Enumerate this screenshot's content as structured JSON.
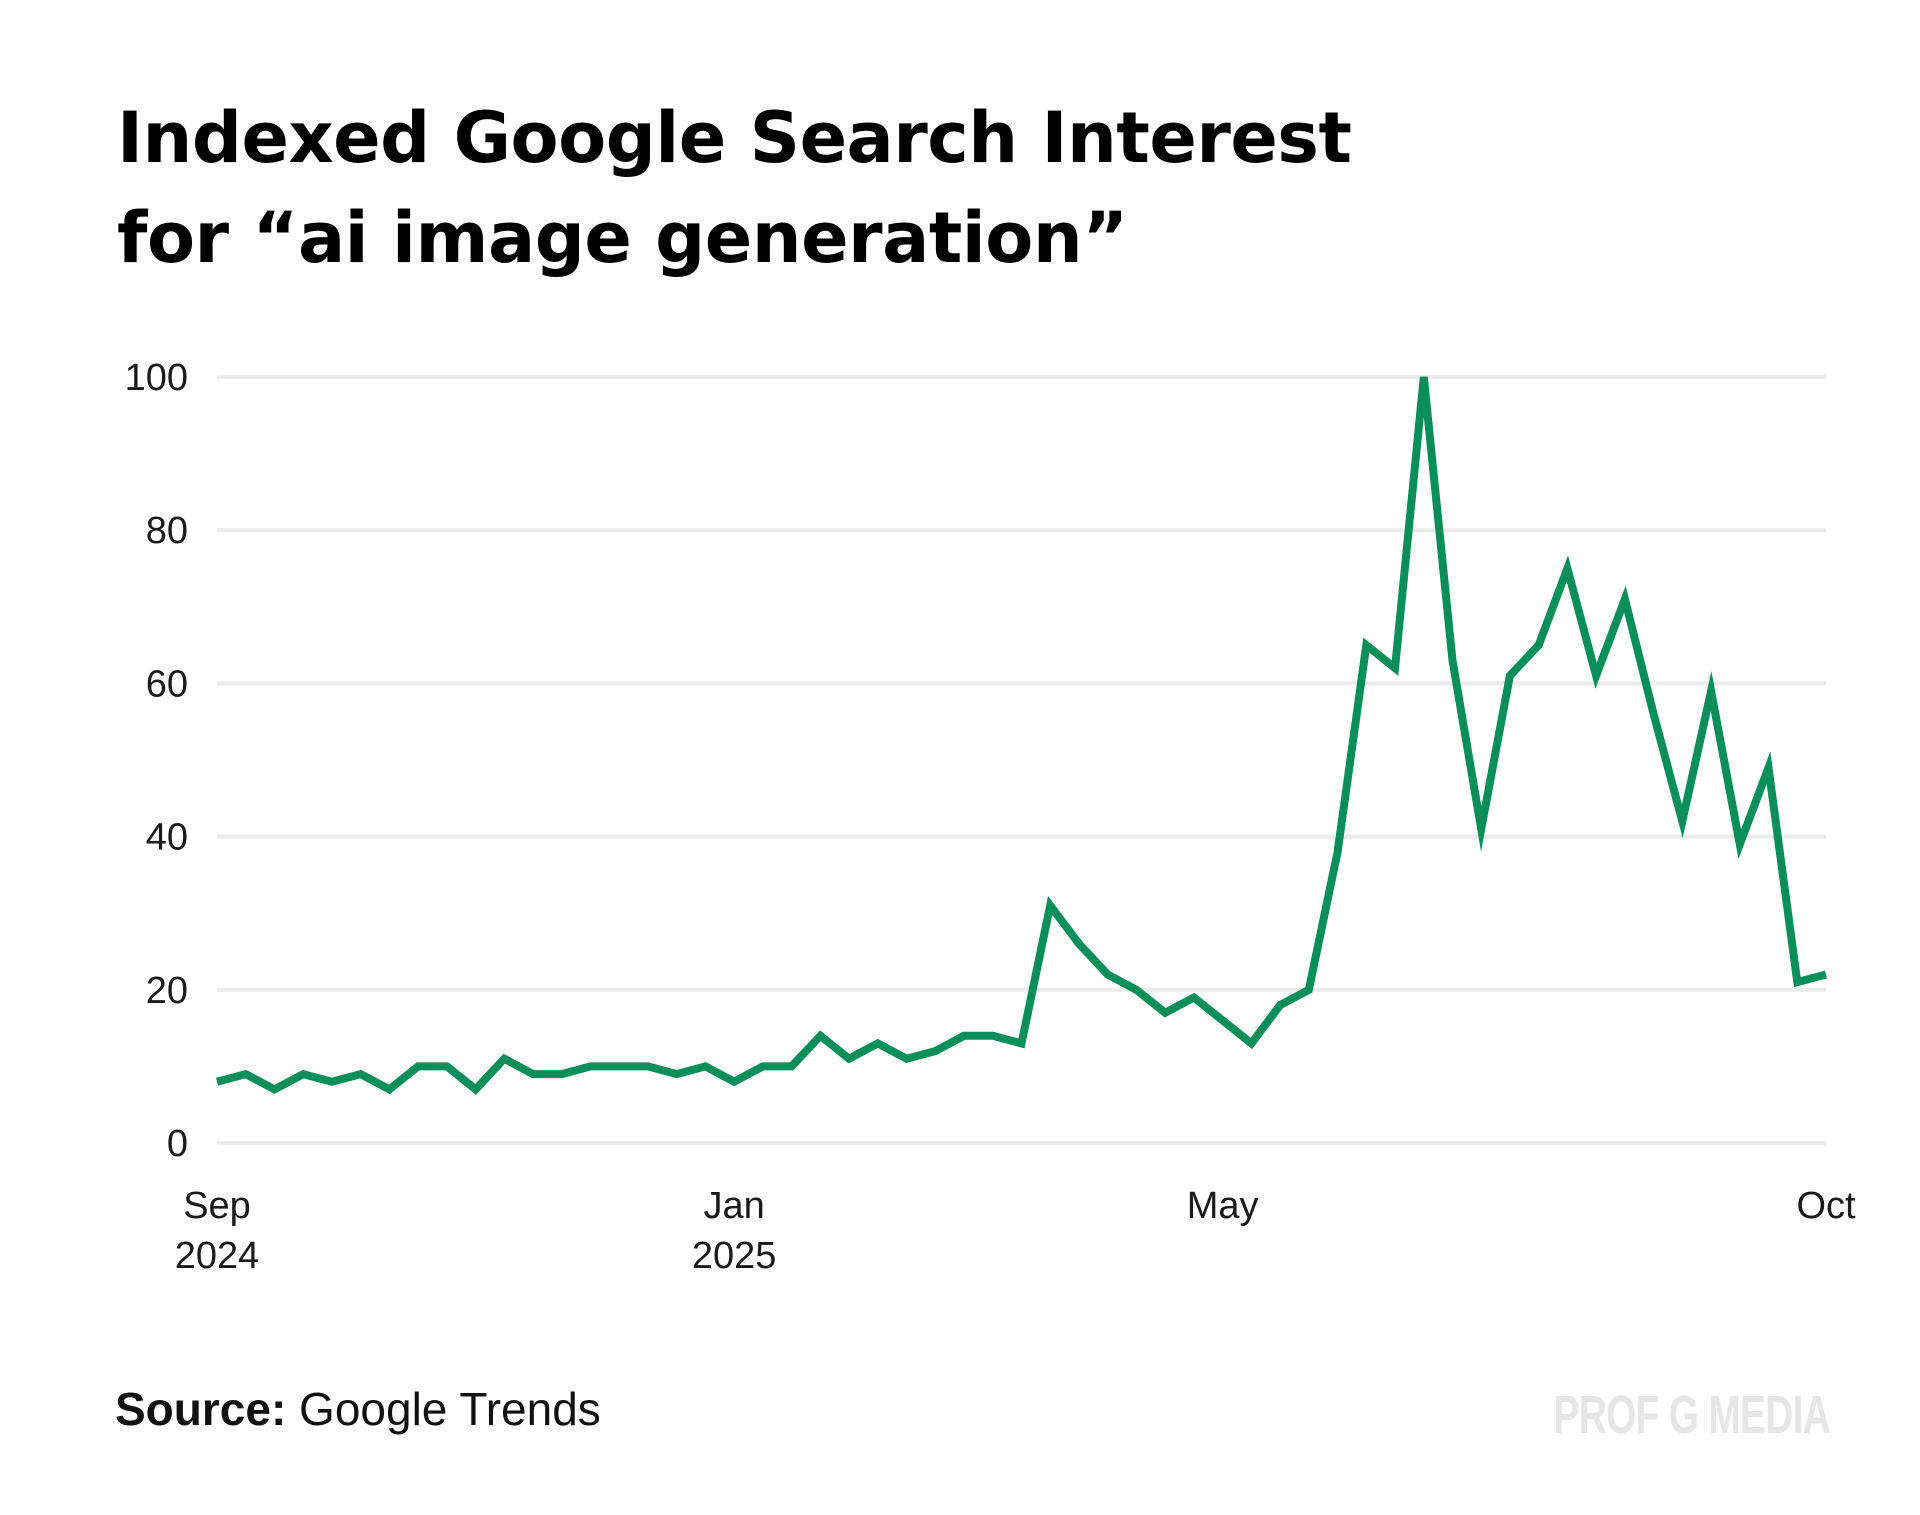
{
  "chart_data": {
    "type": "line",
    "title": "Indexed Google Search Interest for “ai image generation”",
    "title_lines": [
      "Indexed Google Search Interest",
      "for “ai image generation”"
    ],
    "xlabel": "",
    "ylabel": "",
    "ylim": [
      0,
      100
    ],
    "yticks": [
      0,
      20,
      40,
      60,
      80,
      100
    ],
    "grid": true,
    "line_color": "#0a8f5a",
    "grid_color": "#ebebeb",
    "x": [
      0,
      1,
      2,
      3,
      4,
      5,
      6,
      7,
      8,
      9,
      10,
      11,
      12,
      13,
      14,
      15,
      16,
      17,
      18,
      19,
      20,
      21,
      22,
      23,
      24,
      25,
      26,
      27,
      28,
      29,
      30,
      31,
      32,
      33,
      34,
      35,
      36,
      37,
      38,
      39,
      40,
      41,
      42,
      43,
      44,
      45,
      46,
      47,
      48,
      49,
      50,
      51,
      52,
      53,
      54,
      55,
      56
    ],
    "series": [
      {
        "name": "ai image generation",
        "values": [
          8,
          9,
          7,
          9,
          8,
          9,
          7,
          10,
          10,
          7,
          11,
          9,
          9,
          10,
          10,
          10,
          9,
          10,
          8,
          10,
          10,
          14,
          11,
          13,
          11,
          12,
          14,
          14,
          13,
          31,
          26,
          22,
          20,
          17,
          19,
          16,
          13,
          18,
          20,
          38,
          65,
          62,
          100,
          63,
          41,
          61,
          65,
          75,
          61,
          71,
          56,
          42,
          59,
          39,
          49,
          21,
          22
        ]
      }
    ],
    "xticks": [
      {
        "x": 0,
        "lines": [
          "Sep",
          "2024"
        ]
      },
      {
        "x": 18,
        "lines": [
          "Jan",
          "2025"
        ]
      },
      {
        "x": 35,
        "lines": [
          "May"
        ]
      },
      {
        "x": 56,
        "lines": [
          "Oct"
        ]
      }
    ]
  },
  "source": {
    "label": "Source:",
    "text": " Google Trends"
  },
  "logo": "PROF G MEDIA"
}
